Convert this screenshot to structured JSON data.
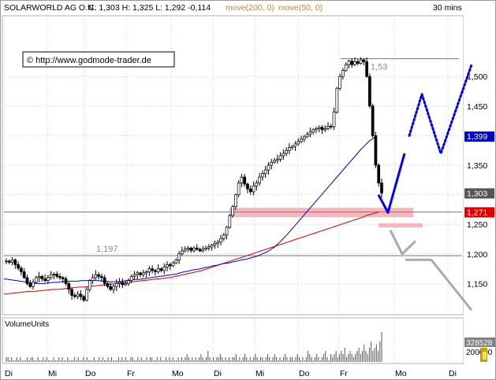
{
  "header": {
    "symbol": "SOLARWORLD AG O.N.",
    "quote": "C: 1,303 H: 1,325 L: 1,292 -0,114",
    "ma200_label": "move(200, 0)",
    "ma50_label": "move(50, 0)",
    "timeframe": "30 mins"
  },
  "watermark": "© http://www.godmode-trader.de",
  "volume_panel": {
    "title": "VolumeUnits",
    "last_value": "328528",
    "tick_label": "200000",
    "bars": [
      1,
      1,
      0,
      1,
      0,
      0,
      1,
      0,
      1,
      0,
      0,
      0,
      1,
      0,
      1,
      1,
      0,
      0,
      1,
      0,
      0,
      1,
      0,
      1,
      0,
      0,
      0,
      1,
      0,
      0,
      1,
      0,
      1,
      0,
      0,
      1,
      0,
      0,
      0,
      1,
      0,
      1,
      0,
      0,
      1,
      0,
      1,
      0,
      0,
      0,
      1,
      0,
      0,
      1,
      0,
      1,
      0,
      0,
      1,
      0,
      1,
      0,
      0,
      0,
      1,
      0,
      1,
      0,
      1,
      0,
      0,
      1,
      1,
      0,
      0,
      1,
      0,
      1,
      0,
      0,
      1,
      0,
      1,
      1,
      0,
      0,
      1,
      0,
      1,
      0,
      0,
      1,
      0,
      1,
      0,
      1,
      0,
      0,
      1,
      0,
      1,
      0,
      1,
      2,
      1,
      0,
      1,
      0,
      1,
      0,
      1,
      2,
      1,
      0,
      1,
      3,
      1,
      0,
      1,
      0,
      1,
      1,
      2,
      1,
      0,
      1,
      0,
      1,
      0,
      1,
      1,
      2,
      0,
      1,
      0,
      1,
      2,
      1,
      0,
      1,
      0,
      1,
      2,
      1,
      0,
      1,
      1,
      0,
      1,
      2,
      1,
      0,
      1,
      2,
      1,
      0,
      1,
      0,
      1,
      2,
      1,
      0,
      1,
      1,
      0,
      1,
      2,
      1,
      0,
      1,
      0,
      1,
      3,
      2,
      1,
      0,
      1,
      2,
      1,
      0,
      1,
      2,
      3,
      1,
      0,
      2,
      1,
      2,
      3,
      1,
      2,
      3,
      2,
      4,
      1,
      2,
      3,
      2,
      1,
      2,
      3,
      4,
      2,
      3,
      5,
      3,
      2,
      4,
      6,
      3,
      4,
      5,
      3,
      6,
      8
    ]
  },
  "chart_data": {
    "type": "candlestick",
    "title": "SOLARWORLD AG O.N.",
    "ylim": [
      1.1,
      1.6
    ],
    "y_ticks": [
      {
        "value": 1.15,
        "label": "1,150"
      },
      {
        "value": 1.2,
        "label": "1,200"
      },
      {
        "value": 1.25,
        "label": "1,250"
      },
      {
        "value": 1.3,
        "label": "1,300"
      },
      {
        "value": 1.35,
        "label": "1,350"
      },
      {
        "value": 1.4,
        "label": "1,400"
      },
      {
        "value": 1.45,
        "label": "1,450"
      },
      {
        "value": 1.5,
        "label": "1,500"
      }
    ],
    "x_ticks": [
      "Di",
      "Mi",
      "Do",
      "Fr",
      "Mo",
      "Di",
      "Mi",
      "Do",
      "Fr",
      "Mo",
      "Di"
    ],
    "last_close": 1.303,
    "price_labels": [
      {
        "value": 1.399,
        "label": "1,399",
        "color": "#0000cc"
      },
      {
        "value": 1.303,
        "label": "1,303",
        "color": "#555555"
      },
      {
        "value": 1.271,
        "label": "1,271",
        "color": "#dd0000"
      }
    ],
    "horizontal_levels": [
      {
        "value": 1.197,
        "label": "1,197"
      },
      {
        "value": 1.53,
        "label": "1,53"
      },
      {
        "value": 1.271,
        "label": ""
      }
    ],
    "zones": [
      {
        "from": 1.262,
        "to": 1.278,
        "color": "#f6b8bc"
      },
      {
        "from": 1.245,
        "to": 1.252,
        "color": "#f6b8bc"
      }
    ],
    "close": [
      1.188,
      1.186,
      1.19,
      1.182,
      1.176,
      1.17,
      1.16,
      1.15,
      1.145,
      1.152,
      1.16,
      1.162,
      1.158,
      1.155,
      1.16,
      1.165,
      1.166,
      1.162,
      1.16,
      1.158,
      1.15,
      1.14,
      1.13,
      1.128,
      1.132,
      1.128,
      1.122,
      1.14,
      1.155,
      1.16,
      1.165,
      1.162,
      1.16,
      1.15,
      1.145,
      1.14,
      1.145,
      1.15,
      1.152,
      1.148,
      1.15,
      1.155,
      1.162,
      1.165,
      1.168,
      1.165,
      1.168,
      1.17,
      1.175,
      1.172,
      1.17,
      1.175,
      1.172,
      1.178,
      1.182,
      1.18,
      1.185,
      1.19,
      1.2,
      1.205,
      1.208,
      1.21,
      1.206,
      1.21,
      1.208,
      1.205,
      1.208,
      1.21,
      1.212,
      1.215,
      1.218,
      1.22,
      1.226,
      1.232,
      1.245,
      1.265,
      1.28,
      1.3,
      1.32,
      1.33,
      1.318,
      1.31,
      1.305,
      1.315,
      1.32,
      1.33,
      1.336,
      1.342,
      1.35,
      1.355,
      1.358,
      1.36,
      1.366,
      1.37,
      1.375,
      1.38,
      1.382,
      1.386,
      1.39,
      1.394,
      1.398,
      1.402,
      1.406,
      1.41,
      1.412,
      1.414,
      1.41,
      1.412,
      1.416,
      1.415,
      1.44,
      1.48,
      1.5,
      1.51,
      1.52,
      1.526,
      1.52,
      1.525,
      1.522,
      1.528,
      1.525,
      1.5,
      1.45,
      1.4,
      1.35,
      1.32,
      1.303
    ],
    "ma50": [
      1.158,
      1.157,
      1.156,
      1.155,
      1.154,
      1.153,
      1.152,
      1.151,
      1.15,
      1.15,
      1.15,
      1.151,
      1.152,
      1.152,
      1.153,
      1.153,
      1.154,
      1.154,
      1.154,
      1.155,
      1.155,
      1.155,
      1.155,
      1.155,
      1.154,
      1.154,
      1.153,
      1.153,
      1.153,
      1.154,
      1.155,
      1.156,
      1.157,
      1.157,
      1.158,
      1.159,
      1.16,
      1.161,
      1.162,
      1.163,
      1.164,
      1.165,
      1.166,
      1.168,
      1.17,
      1.171,
      1.173,
      1.174,
      1.175,
      1.177,
      1.178,
      1.18,
      1.181,
      1.183,
      1.184,
      1.185,
      1.187,
      1.188,
      1.19,
      1.191,
      1.193,
      1.195,
      1.197,
      1.2,
      1.203,
      1.207,
      1.212,
      1.218,
      1.225,
      1.232,
      1.24,
      1.248,
      1.256,
      1.264,
      1.272,
      1.28,
      1.288,
      1.296,
      1.304,
      1.312,
      1.32,
      1.328,
      1.336,
      1.344,
      1.352,
      1.36,
      1.368,
      1.376,
      1.383,
      1.39,
      1.395,
      1.399
    ],
    "ma200": [
      1.132,
      1.133,
      1.134,
      1.135,
      1.136,
      1.137,
      1.137,
      1.138,
      1.139,
      1.14,
      1.14,
      1.141,
      1.142,
      1.143,
      1.144,
      1.144,
      1.145,
      1.146,
      1.147,
      1.148,
      1.149,
      1.15,
      1.151,
      1.152,
      1.153,
      1.154,
      1.155,
      1.156,
      1.157,
      1.158,
      1.159,
      1.16,
      1.162,
      1.164,
      1.166,
      1.168,
      1.17,
      1.172,
      1.175,
      1.178,
      1.181,
      1.184,
      1.187,
      1.19,
      1.193,
      1.196,
      1.199,
      1.202,
      1.205,
      1.208,
      1.211,
      1.214,
      1.217,
      1.22,
      1.223,
      1.226,
      1.229,
      1.232,
      1.235,
      1.238,
      1.241,
      1.244,
      1.247,
      1.25,
      1.253,
      1.256,
      1.259,
      1.262,
      1.266,
      1.268,
      1.271
    ],
    "projections": [
      {
        "style": "solid",
        "color": "#0000ee",
        "points": [
          [
            0,
            1.3
          ],
          [
            1,
            1.27
          ],
          [
            2,
            1.37
          ]
        ]
      },
      {
        "style": "dotted",
        "color": "#0000ee",
        "points": [
          [
            0,
            1.4
          ],
          [
            1,
            1.47
          ],
          [
            2,
            1.37
          ],
          [
            3,
            1.52
          ]
        ]
      },
      {
        "style": "solid",
        "color": "#aaaaaa",
        "points": [
          [
            0,
            1.24
          ],
          [
            1,
            1.2
          ],
          [
            2,
            1.222
          ]
        ]
      },
      {
        "style": "solid",
        "color": "#aaaaaa",
        "points": [
          [
            0,
            1.19
          ],
          [
            1,
            1.19
          ],
          [
            2,
            1.105
          ]
        ]
      }
    ]
  }
}
